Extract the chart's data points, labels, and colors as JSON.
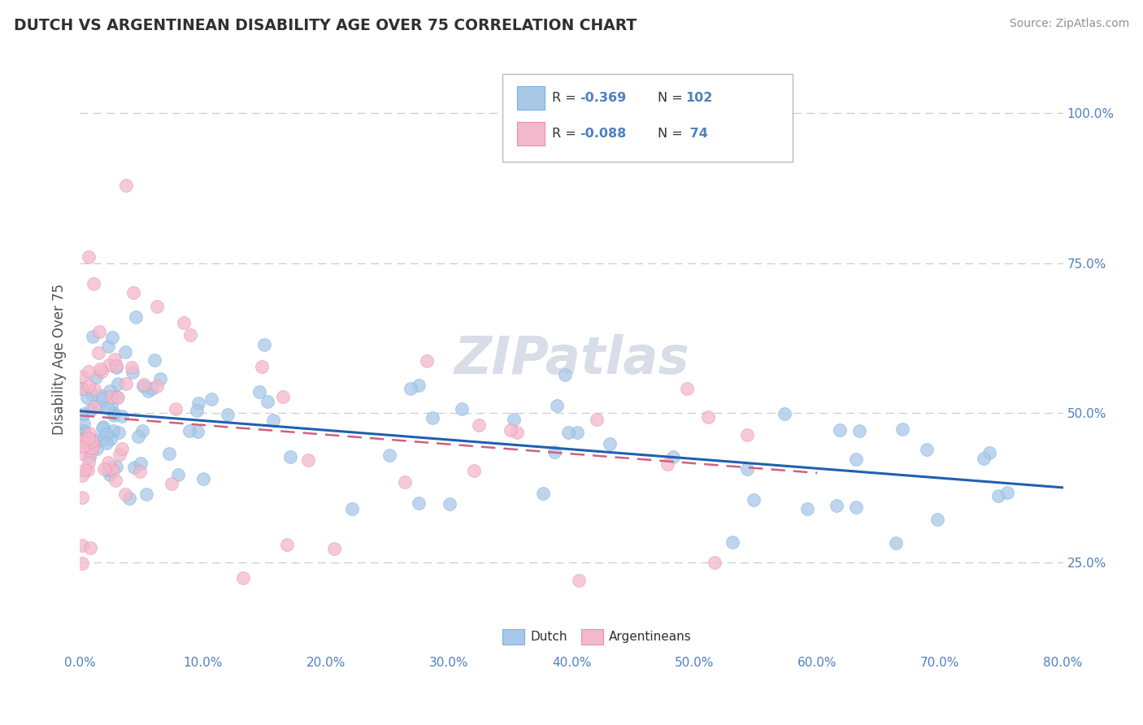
{
  "title": "DUTCH VS ARGENTINEAN DISABILITY AGE OVER 75 CORRELATION CHART",
  "source": "Source: ZipAtlas.com",
  "ylabel": "Disability Age Over 75",
  "xlabel_ticks": [
    "0.0%",
    "10.0%",
    "20.0%",
    "30.0%",
    "40.0%",
    "50.0%",
    "60.0%",
    "70.0%",
    "80.0%"
  ],
  "xlabel_vals": [
    0.0,
    0.1,
    0.2,
    0.3,
    0.4,
    0.5,
    0.6,
    0.7,
    0.8
  ],
  "ylabel_ticks": [
    "25.0%",
    "50.0%",
    "75.0%",
    "100.0%"
  ],
  "ylabel_vals": [
    0.25,
    0.5,
    0.75,
    1.0
  ],
  "xlim": [
    0.0,
    0.8
  ],
  "ylim": [
    0.1,
    1.08
  ],
  "legend_dutch_R": "-0.369",
  "legend_dutch_N": "102",
  "legend_arg_R": "-0.088",
  "legend_arg_N": " 74",
  "dutch_color": "#a8c8e8",
  "dutch_edge_color": "#7ab3e0",
  "dutch_line_color": "#2060b0",
  "arg_color": "#f4b8cc",
  "arg_edge_color": "#e890a8",
  "arg_line_color": "#d06080",
  "background_color": "#ffffff",
  "watermark_color": "#d8dde8",
  "title_color": "#303030",
  "source_color": "#909090",
  "tick_color": "#5080c0",
  "ylabel_color": "#505050",
  "grid_color": "#c8cdd8",
  "legend_border_color": "#b0b8c8"
}
